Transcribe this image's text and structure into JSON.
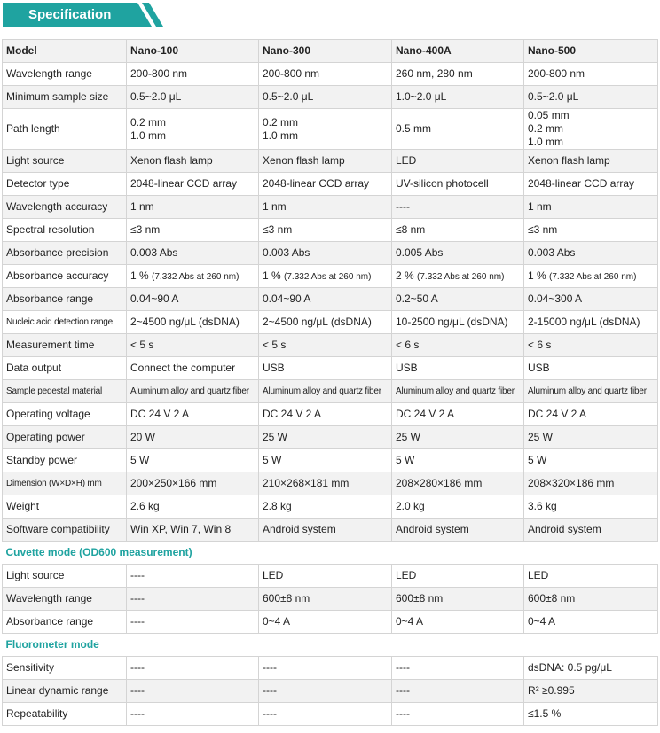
{
  "header": {
    "title": "Specification"
  },
  "table": {
    "columns": [
      "Model",
      "Nano-100",
      "Nano-300",
      "Nano-400A",
      "Nano-500"
    ],
    "rows": [
      [
        "Wavelength range",
        "200-800 nm",
        "200-800 nm",
        "260 nm, 280 nm",
        "200-800 nm"
      ],
      [
        "Minimum sample size",
        "0.5~2.0 μL",
        "0.5~2.0 μL",
        "1.0~2.0 μL",
        "0.5~2.0 μL"
      ],
      [
        "Path length",
        [
          "0.2 mm",
          "1.0 mm"
        ],
        [
          "0.2 mm",
          "1.0 mm"
        ],
        "0.5 mm",
        [
          "0.05 mm",
          "0.2 mm",
          "1.0 mm"
        ]
      ],
      [
        "Light source",
        "Xenon flash lamp",
        "Xenon flash lamp",
        "LED",
        "Xenon flash lamp"
      ],
      [
        "Detector type",
        "2048-linear CCD array",
        "2048-linear CCD array",
        "UV-silicon photocell",
        "2048-linear CCD array"
      ],
      [
        "Wavelength accuracy",
        "1 nm",
        "1 nm",
        "----",
        "1 nm"
      ],
      [
        "Spectral resolution",
        "≤3 nm",
        "≤3 nm",
        "≤8 nm",
        "≤3 nm"
      ],
      [
        "Absorbance precision",
        "0.003 Abs",
        "0.003 Abs",
        "0.005 Abs",
        "0.003 Abs"
      ],
      [
        "Absorbance accuracy",
        {
          "value": "1 %",
          "note": "(7.332 Abs at 260 nm)"
        },
        {
          "value": "1 %",
          "note": "(7.332 Abs at 260 nm)"
        },
        {
          "value": "2 %",
          "note": "(7.332 Abs at 260 nm)"
        },
        {
          "value": "1 %",
          "note": "(7.332 Abs at 260 nm)"
        }
      ],
      [
        "Absorbance range",
        "0.04~90 A",
        "0.04~90 A",
        "0.2~50 A",
        "0.04~300 A"
      ],
      [
        "Nucleic acid detection range",
        "2~4500 ng/μL (dsDNA)",
        "2~4500 ng/μL (dsDNA)",
        "10-2500 ng/μL (dsDNA)",
        "2-15000 ng/μL (dsDNA)"
      ],
      [
        "Measurement time",
        "< 5 s",
        "< 5 s",
        "< 6 s",
        "< 6 s"
      ],
      [
        "Data output",
        "Connect the computer",
        "USB",
        "USB",
        "USB"
      ],
      [
        "Sample pedestal material",
        "Aluminum alloy and quartz fiber",
        "Aluminum alloy and quartz fiber",
        "Aluminum alloy and quartz fiber",
        "Aluminum alloy and quartz fiber"
      ],
      [
        "Operating voltage",
        "DC 24 V 2 A",
        "DC 24 V 2 A",
        "DC 24 V 2 A",
        "DC 24 V 2 A"
      ],
      [
        "Operating power",
        "20 W",
        "25 W",
        "25 W",
        "25 W"
      ],
      [
        "Standby power",
        "5 W",
        "5 W",
        "5 W",
        "5 W"
      ],
      [
        "Dimension (W×D×H) mm",
        "200×250×166 mm",
        "210×268×181 mm",
        "208×280×186 mm",
        "208×320×186 mm"
      ],
      [
        "Weight",
        "2.6 kg",
        "2.8 kg",
        "2.0 kg",
        "3.6 kg"
      ],
      [
        "Software compatibility",
        "Win XP, Win 7, Win 8",
        "Android system",
        "Android system",
        "Android system"
      ]
    ]
  },
  "sections": [
    {
      "title": "Cuvette mode (OD600 measurement)",
      "rows": [
        [
          "Light source",
          "----",
          "LED",
          "LED",
          "LED"
        ],
        [
          "Wavelength range",
          "----",
          "600±8 nm",
          "600±8 nm",
          "600±8 nm"
        ],
        [
          "Absorbance range",
          "----",
          "0~4 A",
          "0~4 A",
          "0~4 A"
        ]
      ]
    },
    {
      "title": "Fluorometer mode",
      "rows": [
        [
          "Sensitivity",
          "----",
          "----",
          "----",
          "dsDNA: 0.5 pg/μL"
        ],
        [
          "Linear dynamic range",
          "----",
          "----",
          "----",
          "R² ≥0.995"
        ],
        [
          "Repeatability",
          "----",
          "----",
          "----",
          "≤1.5 %"
        ]
      ]
    }
  ]
}
